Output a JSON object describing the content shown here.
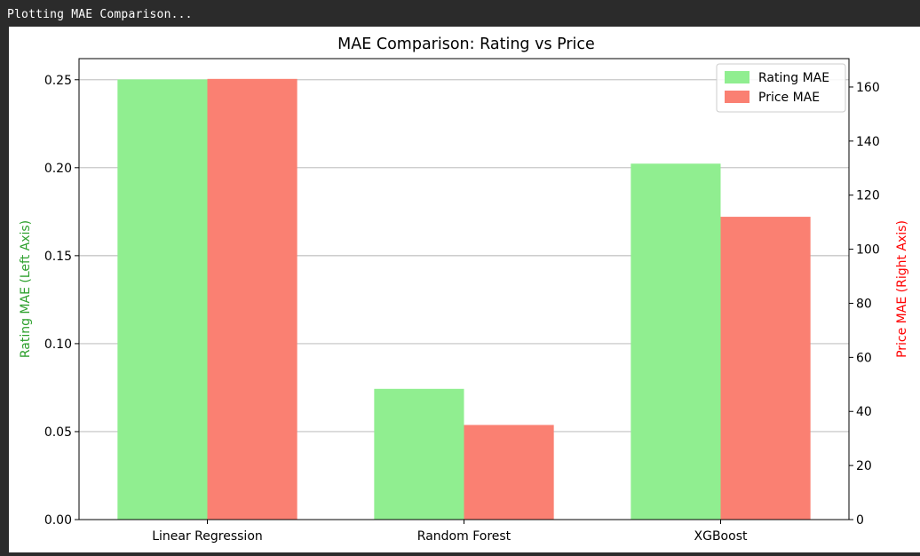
{
  "console": {
    "output_line": "Plotting MAE Comparison..."
  },
  "chart_data": {
    "type": "bar",
    "title": "MAE Comparison: Rating vs Price",
    "categories": [
      "Linear Regression",
      "Random Forest",
      "XGBoost"
    ],
    "series": [
      {
        "name": "Rating MAE",
        "axis": "left",
        "color": "#90ee90",
        "values": [
          0.2502,
          0.0743,
          0.2023
        ]
      },
      {
        "name": "Price MAE",
        "axis": "right",
        "color": "#fa8072",
        "values": [
          163.0,
          35.0,
          112.0
        ]
      }
    ],
    "ylabel_left": "Rating MAE (Left Axis)",
    "ylabel_left_color": "#2ca02c",
    "ylabel_right": "Price MAE (Right Axis)",
    "ylabel_right_color": "#ff0000",
    "ylim_left": [
      0,
      0.262
    ],
    "ylim_right": [
      0,
      170.5
    ],
    "yticks_left": [
      "0.00",
      "0.05",
      "0.10",
      "0.15",
      "0.20",
      "0.25"
    ],
    "yticks_right": [
      "0",
      "20",
      "40",
      "60",
      "80",
      "100",
      "120",
      "140",
      "160"
    ],
    "grid": "horizontal-left-axis",
    "legend_position": "top-right"
  }
}
